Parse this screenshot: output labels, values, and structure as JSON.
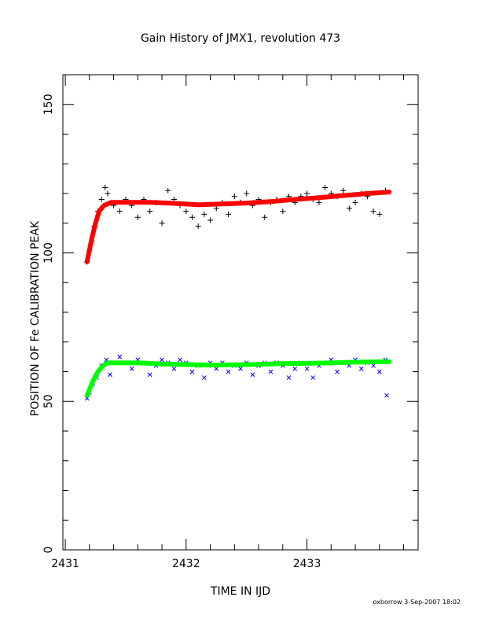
{
  "chart_data": {
    "type": "scatter",
    "title": "Gain History of JMX1, revolution 473",
    "xlabel": "TIME IN IJD",
    "ylabel": "POSITION OF Fe CALIBRATION PEAK",
    "xlim": [
      2430.98,
      2433.92
    ],
    "ylim": [
      0,
      160
    ],
    "x_ticks": [
      2431,
      2432,
      2433
    ],
    "x_tick_labels": [
      "2431",
      "2432",
      "2433"
    ],
    "y_ticks": [
      0,
      50,
      100,
      150
    ],
    "y_tick_labels": [
      "0",
      "50",
      "100",
      "150"
    ],
    "grid": false,
    "footer": "oxborrow  3-Sep-2007 18:02",
    "series": [
      {
        "marker": "plus",
        "color": "#000000",
        "x": [
          2431.18,
          2431.2,
          2431.22,
          2431.24,
          2431.27,
          2431.3,
          2431.33,
          2431.35,
          2431.4,
          2431.45,
          2431.5,
          2431.55,
          2431.6,
          2431.65,
          2431.7,
          2431.75,
          2431.8,
          2431.85,
          2431.9,
          2431.95,
          2432.0,
          2432.05,
          2432.1,
          2432.15,
          2432.2,
          2432.25,
          2432.3,
          2432.35,
          2432.4,
          2432.45,
          2432.5,
          2432.55,
          2432.6,
          2432.65,
          2432.7,
          2432.75,
          2432.8,
          2432.85,
          2432.9,
          2432.95,
          2433.0,
          2433.05,
          2433.1,
          2433.15,
          2433.2,
          2433.25,
          2433.3,
          2433.35,
          2433.4,
          2433.45,
          2433.5,
          2433.55,
          2433.6,
          2433.65
        ],
        "y": [
          97,
          101,
          104,
          109,
          114,
          118,
          122,
          120,
          116,
          114,
          118,
          116,
          112,
          118,
          114,
          117,
          110,
          121,
          118,
          116,
          114,
          112,
          109,
          113,
          111,
          115,
          117,
          113,
          119,
          117,
          120,
          116,
          118,
          112,
          117,
          118,
          114,
          119,
          117,
          119,
          120,
          118,
          117,
          122,
          120,
          119,
          121,
          115,
          117,
          120,
          119,
          114,
          113,
          121
        ]
      },
      {
        "marker": "x",
        "color": "#0000ff",
        "x": [
          2431.18,
          2431.2,
          2431.23,
          2431.26,
          2431.3,
          2431.34,
          2431.37,
          2431.4,
          2431.45,
          2431.5,
          2431.55,
          2431.6,
          2431.65,
          2431.7,
          2431.75,
          2431.8,
          2431.85,
          2431.9,
          2431.95,
          2432.0,
          2432.05,
          2432.1,
          2432.15,
          2432.2,
          2432.25,
          2432.3,
          2432.35,
          2432.4,
          2432.45,
          2432.5,
          2432.55,
          2432.6,
          2432.65,
          2432.7,
          2432.75,
          2432.8,
          2432.85,
          2432.9,
          2432.95,
          2433.0,
          2433.05,
          2433.1,
          2433.15,
          2433.2,
          2433.25,
          2433.3,
          2433.35,
          2433.4,
          2433.45,
          2433.5,
          2433.55,
          2433.6,
          2433.65,
          2433.66
        ],
        "y": [
          51,
          53,
          56,
          58,
          62,
          64,
          59,
          63,
          65,
          63,
          61,
          64,
          63,
          59,
          62,
          64,
          63,
          61,
          64,
          63,
          60,
          62,
          58,
          63,
          61,
          63,
          60,
          62,
          61,
          63,
          59,
          62,
          63,
          60,
          63,
          62,
          58,
          61,
          63,
          61,
          58,
          62,
          63,
          64,
          60,
          63,
          62,
          64,
          61,
          63,
          62,
          60,
          64,
          52
        ]
      },
      {
        "marker": "line",
        "color": "#ff0000",
        "x": [
          2431.18,
          2431.2,
          2431.22,
          2431.25,
          2431.28,
          2431.32,
          2431.38,
          2431.5,
          2431.7,
          2431.9,
          2432.1,
          2432.3,
          2432.5,
          2432.7,
          2432.9,
          2433.1,
          2433.3,
          2433.5,
          2433.68
        ],
        "y": [
          97,
          101,
          105,
          110,
          114,
          116,
          117,
          117,
          117,
          116.7,
          116.2,
          116.5,
          116.8,
          117.3,
          118.0,
          118.6,
          119.3,
          120.0,
          120.5
        ]
      },
      {
        "marker": "line",
        "color": "#00ff00",
        "x": [
          2431.18,
          2431.2,
          2431.23,
          2431.27,
          2431.31,
          2431.35,
          2431.4,
          2431.6,
          2431.8,
          2432.0,
          2432.2,
          2432.4,
          2432.6,
          2432.8,
          2433.0,
          2433.2,
          2433.4,
          2433.68
        ],
        "y": [
          52,
          54,
          57,
          60,
          62,
          63,
          63,
          63,
          62.6,
          62.4,
          62.2,
          62.3,
          62.5,
          62.7,
          62.8,
          63.0,
          63.2,
          63.4
        ]
      }
    ]
  }
}
